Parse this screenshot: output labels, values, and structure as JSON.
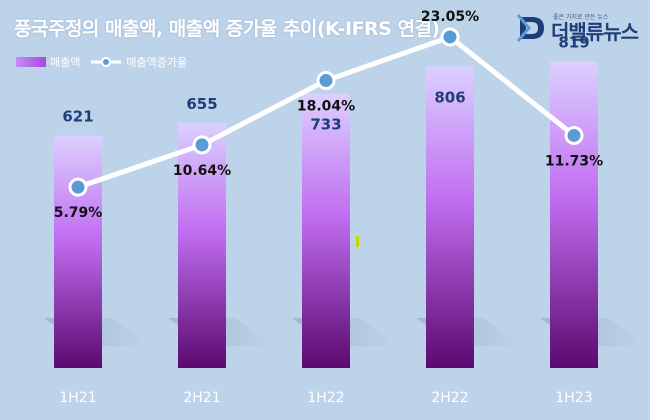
{
  "header": {
    "title": "풍국주정의 매출액, 매출액 증가율 추이(K-IFRS 연결)"
  },
  "logo": {
    "tagline": "좋은 가치로 만든 뉴스",
    "name": "더밸류뉴스"
  },
  "legend": {
    "bar_label": "매출액",
    "line_label": "매출액증가율"
  },
  "colors": {
    "background": "#bcd3ea",
    "bar_top": "#dcd0ff",
    "bar_mid": "#c06cf0",
    "bar_bottom": "#5a0a6e",
    "line": "#ffffff",
    "marker_fill": "#5b9bd5",
    "value_label": "#1f3e78"
  },
  "chart_data": {
    "type": "bar",
    "categories": [
      "1H21",
      "2H21",
      "1H22",
      "2H22",
      "1H23"
    ],
    "series": [
      {
        "name": "매출액",
        "type": "bar",
        "values": [
          621,
          655,
          733,
          806,
          819
        ],
        "labels": [
          "621",
          "655",
          "733",
          "806",
          "819"
        ]
      },
      {
        "name": "매출액증가율",
        "type": "line",
        "values": [
          5.79,
          10.64,
          18.04,
          23.05,
          11.73
        ],
        "labels": [
          "5.79%",
          "10.64%",
          "18.04%",
          "23.05%",
          "11.73%"
        ]
      }
    ],
    "ylim": [
      0,
      930
    ],
    "y2lim": [
      -15,
      25
    ],
    "grid": false,
    "legend_position": "top-left"
  }
}
